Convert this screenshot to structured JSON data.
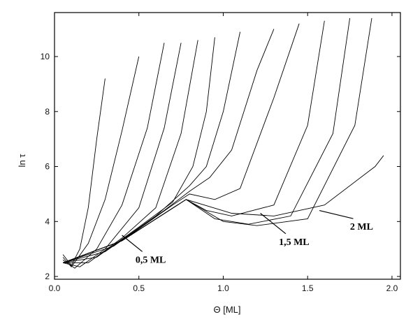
{
  "chart_data": {
    "type": "line",
    "title": "",
    "xlabel": "Θ [ML]",
    "ylabel": "ln τ",
    "xlim": [
      0.0,
      2.05
    ],
    "ylim": [
      1.9,
      11.6
    ],
    "xticks": [
      "0.0",
      "0.5",
      "1.0",
      "1.5",
      "2.0"
    ],
    "yticks": [
      "2",
      "4",
      "6",
      "8",
      "10"
    ],
    "grid": false,
    "legend": "none",
    "line_color": "#000000",
    "description_of_families": {
      "low_coverage_group": "curves starting near ln τ ≈ 2.5 at Θ≈0.05, decreasing to a minimum near Θ≈0.1, then rising steeply",
      "ridge": "envelope rising from (0.1, 2.2) to a cusp near (0.8, 5.8)",
      "high_coverage_group": "curves branching from the ridge, dipping to a second minimum near Θ≈1.1, rising to ln τ ≈ 11.4"
    },
    "series": [
      {
        "x": [
          0.05,
          0.1,
          0.15,
          0.2,
          0.25,
          0.3
        ],
        "y": [
          2.8,
          2.4,
          3.0,
          4.5,
          7.0,
          9.2
        ]
      },
      {
        "x": [
          0.05,
          0.1,
          0.2,
          0.3,
          0.4,
          0.5
        ],
        "y": [
          2.7,
          2.35,
          3.2,
          4.8,
          7.3,
          10.0
        ]
      },
      {
        "x": [
          0.05,
          0.12,
          0.25,
          0.4,
          0.55,
          0.65
        ],
        "y": [
          2.6,
          2.3,
          3.0,
          4.6,
          7.4,
          10.5
        ]
      },
      {
        "x": [
          0.05,
          0.15,
          0.3,
          0.5,
          0.65,
          0.75
        ],
        "y": [
          2.5,
          2.35,
          3.0,
          4.5,
          7.4,
          10.5
        ]
      },
      {
        "x": [
          0.05,
          0.2,
          0.4,
          0.6,
          0.75,
          0.85
        ],
        "y": [
          2.5,
          2.5,
          3.4,
          4.5,
          7.2,
          10.6
        ]
      },
      {
        "x": [
          0.05,
          0.25,
          0.5,
          0.7,
          0.82,
          0.9,
          0.95
        ],
        "y": [
          2.5,
          2.7,
          3.8,
          4.7,
          6.0,
          8.0,
          10.7
        ]
      },
      {
        "x": [
          0.05,
          0.3,
          0.6,
          0.8,
          0.9,
          1.0,
          1.1
        ],
        "y": [
          2.5,
          2.9,
          4.2,
          5.3,
          6.0,
          8.0,
          10.9
        ]
      },
      {
        "x": [
          0.05,
          0.35,
          0.65,
          0.8,
          0.92,
          1.05,
          1.2,
          1.3
        ],
        "y": [
          2.5,
          3.1,
          4.4,
          5.1,
          5.6,
          6.6,
          9.5,
          11.0
        ]
      },
      {
        "x": [
          0.05,
          0.4,
          0.7,
          0.8,
          0.95,
          1.1,
          1.3,
          1.45
        ],
        "y": [
          2.5,
          3.3,
          4.6,
          5.0,
          4.8,
          5.2,
          8.5,
          11.2
        ]
      },
      {
        "x": [
          0.05,
          0.4,
          0.78,
          0.9,
          1.05,
          1.3,
          1.5,
          1.6
        ],
        "y": [
          2.5,
          3.3,
          4.8,
          4.4,
          4.2,
          4.6,
          7.5,
          11.3
        ]
      },
      {
        "x": [
          0.05,
          0.4,
          0.78,
          0.95,
          1.15,
          1.4,
          1.65,
          1.75
        ],
        "y": [
          2.5,
          3.3,
          4.8,
          4.1,
          3.9,
          4.2,
          7.2,
          11.4
        ]
      },
      {
        "x": [
          0.05,
          0.4,
          0.78,
          1.0,
          1.2,
          1.5,
          1.78,
          1.88
        ],
        "y": [
          2.5,
          3.3,
          4.8,
          4.0,
          3.85,
          4.1,
          7.5,
          11.4
        ]
      },
      {
        "x": [
          0.05,
          0.4,
          0.78,
          1.05,
          1.3,
          1.6,
          1.9,
          1.95
        ],
        "y": [
          2.5,
          3.3,
          4.8,
          4.3,
          4.2,
          4.6,
          6.0,
          6.4
        ]
      }
    ],
    "annotations": [
      {
        "text": "0,5 ML",
        "x": 0.57,
        "y": 2.6
      },
      {
        "text": "1,5 ML",
        "x": 1.42,
        "y": 3.25
      },
      {
        "text": "2 ML",
        "x": 1.82,
        "y": 3.8
      }
    ]
  }
}
